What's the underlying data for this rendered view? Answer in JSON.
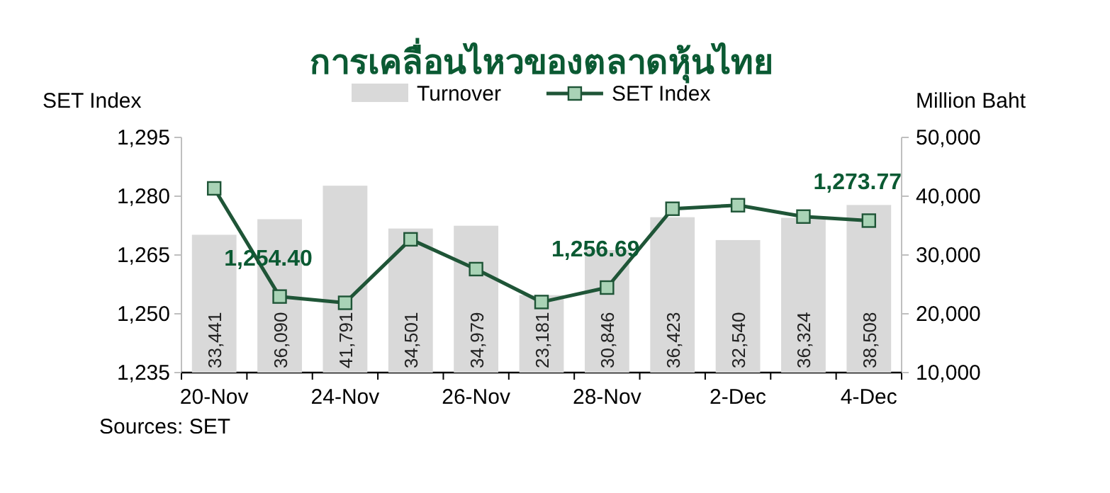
{
  "chart_data": {
    "type": "bar",
    "title": "การเคลื่อนไหวของตลาดหุ้นไทย",
    "ylabel": "SET Index",
    "y2label": "Million Baht",
    "categories": [
      "20-Nov",
      null,
      "24-Nov",
      null,
      "26-Nov",
      null,
      "28-Nov",
      null,
      "2-Dec",
      null,
      "4-Dec"
    ],
    "series": [
      {
        "name": "Turnover",
        "axis": "y2",
        "color": "#d9d9d9",
        "values": [
          33441,
          36090,
          41791,
          34501,
          34979,
          23181,
          30846,
          36423,
          32540,
          36324,
          38508
        ],
        "value_labels": [
          "33,441",
          "36,090",
          "41,791",
          "34,501",
          "34,979",
          "23,181",
          "30,846",
          "36,423",
          "32,540",
          "36,324",
          "38,508"
        ]
      },
      {
        "name": "SET Index",
        "type": "line",
        "color": "#1f5537",
        "marker": "square",
        "values": [
          1282.0,
          1254.4,
          1252.8,
          1269.0,
          1261.4,
          1253.0,
          1256.69,
          1276.8,
          1277.7,
          1274.8,
          1273.77
        ],
        "value_labels": [
          null,
          "1,254.40",
          null,
          null,
          null,
          null,
          "1,256.69",
          null,
          null,
          null,
          "1,273.77"
        ]
      }
    ],
    "ylim": [
      1235,
      1295
    ],
    "yticks": [
      {
        "value": 1235,
        "label": "1,235"
      },
      {
        "value": 1250,
        "label": "1,250"
      },
      {
        "value": 1265,
        "label": "1,265"
      },
      {
        "value": 1280,
        "label": "1,280"
      },
      {
        "value": 1295,
        "label": "1,295"
      }
    ],
    "y2lim": [
      10000,
      50000
    ],
    "y2ticks": [
      {
        "value": 10000,
        "label": "10,000"
      },
      {
        "value": 20000,
        "label": "20,000"
      },
      {
        "value": 30000,
        "label": "30,000"
      },
      {
        "value": 40000,
        "label": "40,000"
      },
      {
        "value": 50000,
        "label": "50,000"
      }
    ],
    "legend": "top",
    "grid": false,
    "annotations": [
      "Sources: SET"
    ]
  }
}
